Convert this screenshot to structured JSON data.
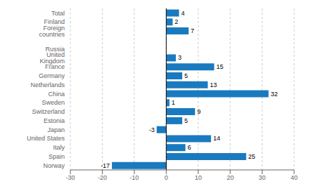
{
  "chart_data": {
    "type": "bar",
    "orientation": "horizontal",
    "categories": [
      "Total",
      "Finland",
      "Foreign countries",
      null,
      "Russia",
      "United Kingdom",
      "France",
      "Germany",
      "Netherlands",
      "China",
      "Sweden",
      "Switzerland",
      "Estonia",
      "Japan",
      "United States",
      "Italy",
      "Spain",
      "Norway"
    ],
    "values": [
      4,
      2,
      7,
      null,
      0,
      3,
      15,
      5,
      13,
      32,
      1,
      9,
      5,
      -3,
      14,
      6,
      25,
      -17
    ],
    "color": "#1a7abf",
    "xlim": [
      -30,
      40
    ],
    "xticks": [
      -30,
      -20,
      -10,
      0,
      10,
      20,
      30,
      40
    ],
    "grid": true,
    "data_labels": true
  }
}
